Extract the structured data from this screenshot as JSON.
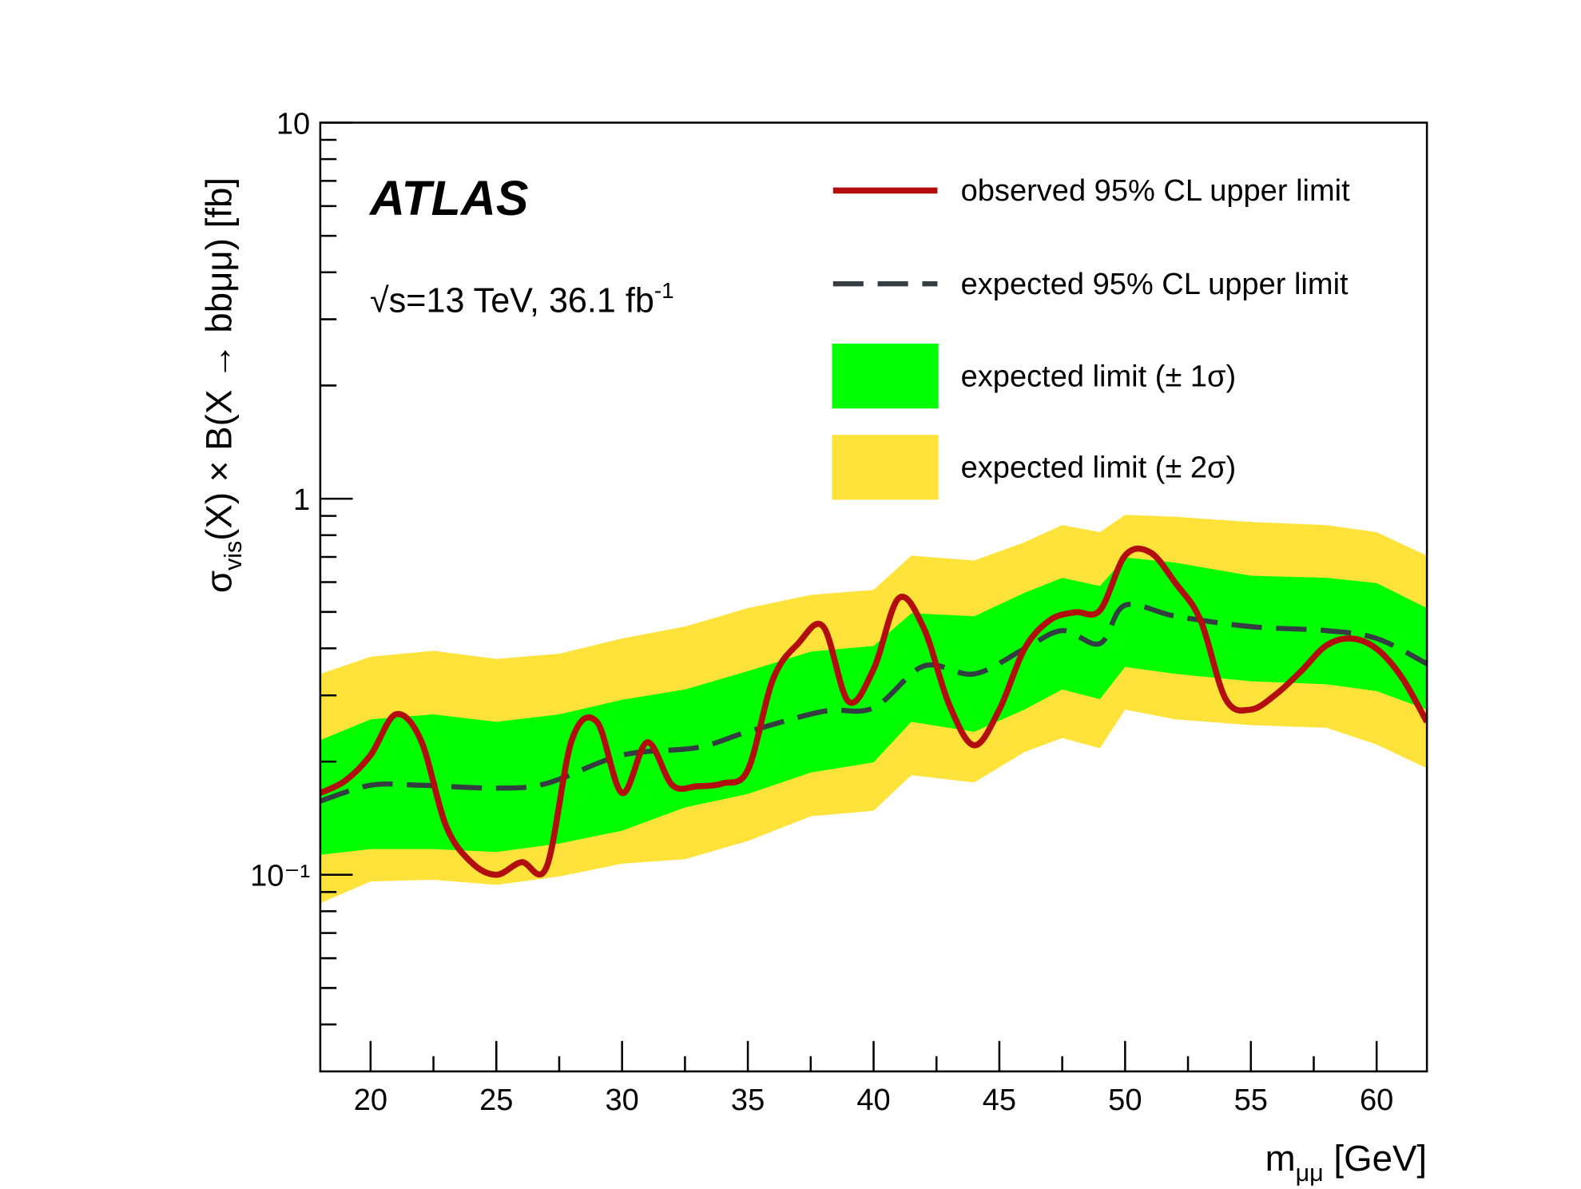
{
  "chart_data": {
    "type": "line",
    "experiment": "ATLAS",
    "annotation": [
      "√s=13 TeV, 36.1 fb",
      "-1"
    ],
    "xlabel": [
      "m",
      "μμ",
      " [GeV]"
    ],
    "ylabel": [
      "σ",
      "vis",
      "(X) × B(X → bbμμ) [fb]"
    ],
    "log_y": true,
    "xlim": [
      18,
      62
    ],
    "ylim": [
      0.03,
      10
    ],
    "xticks": [
      20,
      25,
      30,
      35,
      40,
      45,
      50,
      55,
      60
    ],
    "xminorticks": [
      22.5,
      27.5,
      32.5,
      37.5,
      42.5,
      47.5,
      52.5,
      57.5
    ],
    "yticks": [
      {
        "value": 0.1,
        "label": "10⁻¹"
      },
      1,
      10
    ],
    "yminorticks": [
      0.04,
      0.05,
      0.06,
      0.07,
      0.08,
      0.09,
      0.2,
      0.3,
      0.4,
      0.5,
      0.6,
      0.7,
      0.8,
      0.9,
      2,
      3,
      4,
      5,
      6,
      7,
      8,
      9
    ],
    "legend": "upper right",
    "series": [
      {
        "name": "observed 95% CL upper limit",
        "color": "#b30e0e",
        "style": "solid",
        "x": [
          18,
          19,
          20,
          21,
          22,
          23,
          24,
          25,
          26,
          27,
          28,
          29,
          30,
          31,
          32,
          33,
          34,
          35,
          36,
          37,
          38,
          39,
          40,
          41,
          42,
          43,
          44,
          45,
          46,
          47,
          48,
          49,
          50,
          51,
          52,
          53,
          54,
          55,
          56,
          57,
          58,
          59,
          60,
          61,
          62
        ],
        "values": [
          0.165,
          0.178,
          0.208,
          0.267,
          0.228,
          0.135,
          0.108,
          0.1,
          0.108,
          0.105,
          0.228,
          0.255,
          0.165,
          0.225,
          0.173,
          0.172,
          0.175,
          0.19,
          0.331,
          0.412,
          0.457,
          0.289,
          0.352,
          0.544,
          0.452,
          0.284,
          0.221,
          0.275,
          0.399,
          0.475,
          0.499,
          0.505,
          0.706,
          0.72,
          0.597,
          0.475,
          0.293,
          0.275,
          0.302,
          0.348,
          0.407,
          0.425,
          0.399,
          0.335,
          0.255
        ]
      },
      {
        "name": "expected 95% CL upper limit",
        "color": "#333d42",
        "style": "dashed",
        "x": [
          18,
          20,
          22,
          25,
          27,
          30,
          33,
          35,
          38,
          40,
          42,
          44,
          46,
          47.5,
          49,
          50,
          52,
          55,
          58,
          60,
          62
        ],
        "values": [
          0.157,
          0.173,
          0.173,
          0.17,
          0.175,
          0.208,
          0.218,
          0.24,
          0.272,
          0.278,
          0.359,
          0.342,
          0.399,
          0.446,
          0.412,
          0.521,
          0.487,
          0.457,
          0.446,
          0.425,
          0.364
        ]
      },
      {
        "name": "expected limit (± 1σ)",
        "color": "#00ff00",
        "style": "band",
        "x": [
          18,
          20,
          22.5,
          25,
          27.5,
          30,
          32.5,
          35,
          37.5,
          40,
          41.5,
          44,
          46,
          47.5,
          49,
          50,
          52,
          55,
          58,
          60,
          62
        ],
        "lower": [
          0.113,
          0.117,
          0.117,
          0.115,
          0.121,
          0.131,
          0.151,
          0.164,
          0.187,
          0.199,
          0.255,
          0.24,
          0.275,
          0.311,
          0.293,
          0.357,
          0.342,
          0.327,
          0.321,
          0.308,
          0.275
        ],
        "upper": [
          0.228,
          0.259,
          0.267,
          0.255,
          0.267,
          0.292,
          0.311,
          0.348,
          0.392,
          0.406,
          0.496,
          0.487,
          0.562,
          0.616,
          0.586,
          0.698,
          0.676,
          0.624,
          0.616,
          0.597,
          0.512
        ]
      },
      {
        "name": "expected limit (± 2σ)",
        "color": "#ffe33b",
        "style": "band",
        "x": [
          18,
          20,
          22.5,
          25,
          27.5,
          30,
          32.5,
          35,
          37.5,
          40,
          41.5,
          44,
          46,
          47.5,
          49,
          50,
          52,
          55,
          58,
          60,
          62
        ],
        "lower": [
          0.084,
          0.096,
          0.097,
          0.094,
          0.099,
          0.107,
          0.11,
          0.123,
          0.143,
          0.148,
          0.184,
          0.176,
          0.212,
          0.231,
          0.217,
          0.275,
          0.259,
          0.25,
          0.246,
          0.222,
          0.192
        ],
        "upper": [
          0.342,
          0.38,
          0.394,
          0.375,
          0.387,
          0.425,
          0.457,
          0.512,
          0.555,
          0.572,
          0.706,
          0.685,
          0.766,
          0.851,
          0.815,
          0.906,
          0.895,
          0.867,
          0.851,
          0.815,
          0.706
        ]
      }
    ]
  }
}
